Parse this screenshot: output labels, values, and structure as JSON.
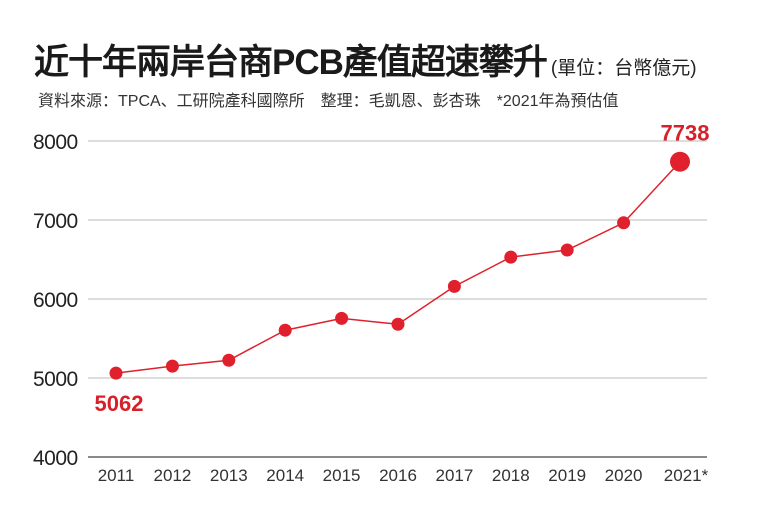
{
  "chart_data": {
    "type": "line",
    "title": "近十年兩岸台商PCB產值超速攀升",
    "unit": "(單位：台幣億元)",
    "subtitle": "資料來源：TPCA、工研院產科國際所　整理：毛凱恩、彭杏珠　*2021年為預估值",
    "categories": [
      "2011",
      "2012",
      "2013",
      "2014",
      "2015",
      "2016",
      "2017",
      "2018",
      "2019",
      "2020",
      "2021*"
    ],
    "values": [
      5062,
      5150,
      5225,
      5605,
      5755,
      5680,
      6160,
      6530,
      6620,
      6965,
      7738
    ],
    "yticks": [
      4000,
      5000,
      6000,
      7000,
      8000
    ],
    "ylim": [
      4000,
      8000
    ],
    "grid": true,
    "data_labels": [
      {
        "index": 0,
        "text": "5062"
      },
      {
        "index": 10,
        "text": "7738"
      }
    ],
    "line_color": "#e0202c",
    "label_color": "#d8202a"
  }
}
